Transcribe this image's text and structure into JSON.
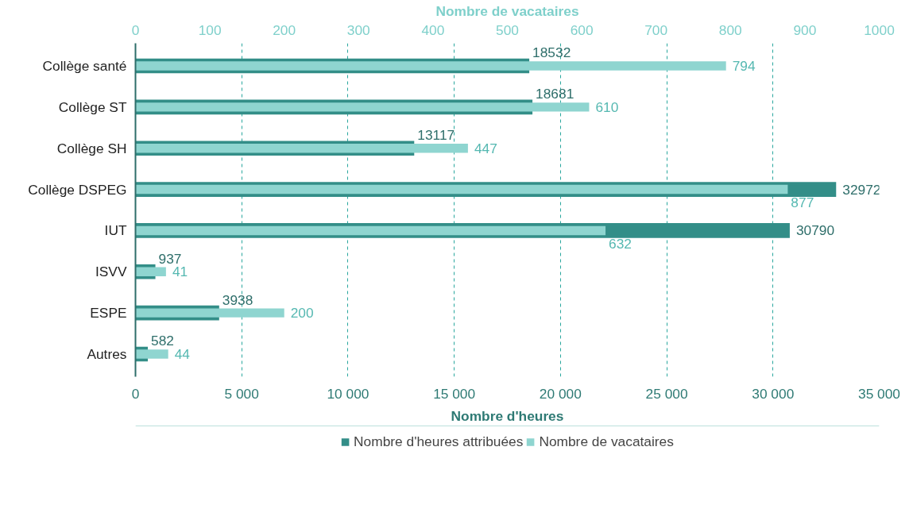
{
  "chart_data": {
    "type": "bar",
    "orientation": "horizontal",
    "categories": [
      "Collège santé",
      "Collège ST",
      "Collège SH",
      "Collège DSPEG",
      "IUT",
      "ISVV",
      "ESPE",
      "Autres"
    ],
    "series": [
      {
        "name": "Nombre d'heures attribuées",
        "color": "#338e88",
        "values": [
          18532,
          18681,
          13117,
          32972,
          30790,
          937,
          3938,
          582
        ]
      },
      {
        "name": "Nombre de vacataires",
        "color": "#8fd5d0",
        "axis": "x2",
        "values": [
          794,
          610,
          447,
          877,
          632,
          41,
          200,
          44
        ]
      }
    ],
    "xlim": [
      0,
      35000
    ],
    "xticks": [
      0,
      {
        "value": 5000,
        "label": "5 000"
      },
      {
        "value": 10000,
        "label": "10 000"
      },
      {
        "value": 15000,
        "label": "15 000"
      },
      {
        "value": 20000,
        "label": "20 000"
      },
      {
        "value": 25000,
        "label": "25 000"
      },
      {
        "value": 30000,
        "label": "30 000"
      },
      {
        "value": 35000,
        "label": "35 000"
      }
    ],
    "x2lim": [
      0,
      1000
    ],
    "x2ticks": [
      0,
      100,
      200,
      300,
      400,
      500,
      600,
      700,
      800,
      900,
      1000
    ],
    "xlabel": "Nombre d'heures",
    "x2label": "Nombre de vacataires",
    "data_labels": true,
    "grid": "x",
    "legend": "bottom"
  }
}
